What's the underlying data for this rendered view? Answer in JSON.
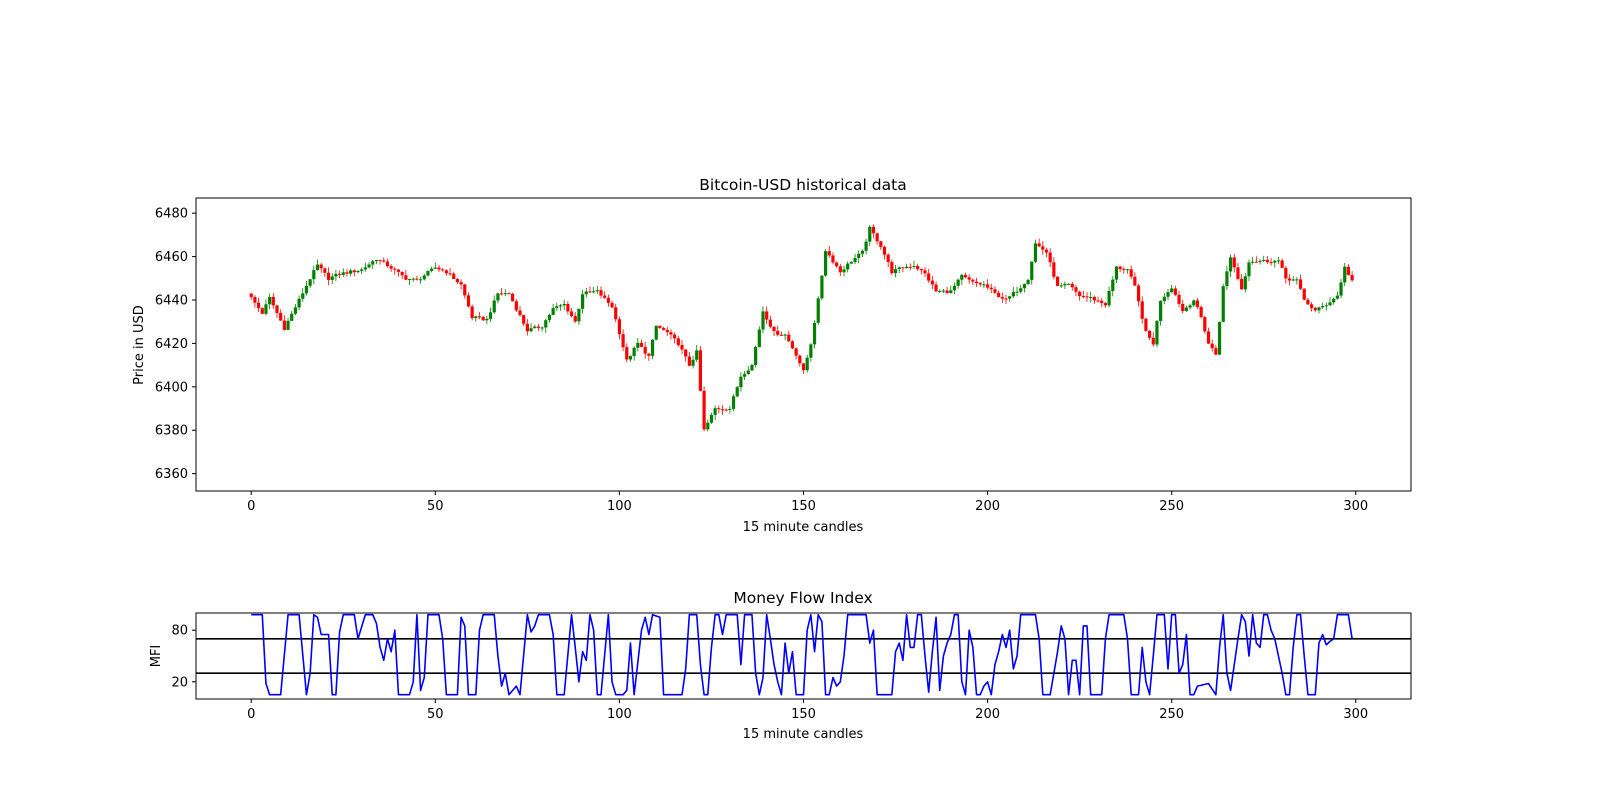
{
  "chart_data": [
    {
      "type": "candlestick",
      "title": "Bitcoin-USD historical data",
      "xlabel": "15 minute candles",
      "ylabel": "Price in USD",
      "xlim": [
        -15,
        315
      ],
      "ylim": [
        6352,
        6487
      ],
      "xticks": [
        0,
        50,
        100,
        150,
        200,
        250,
        300
      ],
      "yticks": [
        6360,
        6380,
        6400,
        6420,
        6440,
        6460,
        6480
      ],
      "up_color": "#008000",
      "down_color": "#ff0000",
      "grid": false,
      "close_anchors": [
        [
          0,
          6441
        ],
        [
          3,
          6434
        ],
        [
          5,
          6441
        ],
        [
          9,
          6427
        ],
        [
          13,
          6440
        ],
        [
          16,
          6450
        ],
        [
          18,
          6456
        ],
        [
          21,
          6450
        ],
        [
          24,
          6452
        ],
        [
          30,
          6454
        ],
        [
          34,
          6459
        ],
        [
          37,
          6456
        ],
        [
          42,
          6450
        ],
        [
          45,
          6449
        ],
        [
          50,
          6455
        ],
        [
          53,
          6453
        ],
        [
          57,
          6447
        ],
        [
          60,
          6432
        ],
        [
          64,
          6431
        ],
        [
          67,
          6443
        ],
        [
          70,
          6443
        ],
        [
          72,
          6436
        ],
        [
          75,
          6426
        ],
        [
          79,
          6428
        ],
        [
          82,
          6436
        ],
        [
          85,
          6438
        ],
        [
          88,
          6430
        ],
        [
          90,
          6443
        ],
        [
          94,
          6444
        ],
        [
          98,
          6437
        ],
        [
          100,
          6425
        ],
        [
          102,
          6412
        ],
        [
          105,
          6420
        ],
        [
          108,
          6414
        ],
        [
          110,
          6428
        ],
        [
          113,
          6425
        ],
        [
          116,
          6420
        ],
        [
          119,
          6410
        ],
        [
          121,
          6416
        ],
        [
          123,
          6380
        ],
        [
          126,
          6390
        ],
        [
          130,
          6390
        ],
        [
          133,
          6405
        ],
        [
          136,
          6410
        ],
        [
          139,
          6435
        ],
        [
          142,
          6425
        ],
        [
          145,
          6424
        ],
        [
          148,
          6415
        ],
        [
          150,
          6407
        ],
        [
          152,
          6420
        ],
        [
          154,
          6440
        ],
        [
          156,
          6463
        ],
        [
          160,
          6453
        ],
        [
          163,
          6458
        ],
        [
          166,
          6462
        ],
        [
          168,
          6473
        ],
        [
          171,
          6465
        ],
        [
          174,
          6453
        ],
        [
          177,
          6455
        ],
        [
          180,
          6456
        ],
        [
          183,
          6452
        ],
        [
          186,
          6444
        ],
        [
          190,
          6444
        ],
        [
          193,
          6451
        ],
        [
          196,
          6448
        ],
        [
          199,
          6447
        ],
        [
          202,
          6443
        ],
        [
          205,
          6440
        ],
        [
          209,
          6446
        ],
        [
          211,
          6450
        ],
        [
          213,
          6466
        ],
        [
          216,
          6462
        ],
        [
          219,
          6446
        ],
        [
          222,
          6447
        ],
        [
          225,
          6442
        ],
        [
          228,
          6441
        ],
        [
          232,
          6438
        ],
        [
          235,
          6455
        ],
        [
          238,
          6454
        ],
        [
          240,
          6446
        ],
        [
          243,
          6425
        ],
        [
          245,
          6420
        ],
        [
          247,
          6440
        ],
        [
          250,
          6446
        ],
        [
          253,
          6435
        ],
        [
          256,
          6440
        ],
        [
          258,
          6432
        ],
        [
          260,
          6420
        ],
        [
          262,
          6415
        ],
        [
          264,
          6446
        ],
        [
          266,
          6460
        ],
        [
          269,
          6445
        ],
        [
          271,
          6458
        ],
        [
          275,
          6458
        ],
        [
          279,
          6458
        ],
        [
          281,
          6450
        ],
        [
          284,
          6449
        ],
        [
          286,
          6440
        ],
        [
          289,
          6435
        ],
        [
          292,
          6438
        ],
        [
          295,
          6442
        ],
        [
          297,
          6455
        ],
        [
          299,
          6449
        ]
      ]
    },
    {
      "type": "line",
      "title": "Money Flow Index",
      "xlabel": "15 minute candles",
      "ylabel": "MFI",
      "xlim": [
        -15,
        315
      ],
      "ylim": [
        0,
        100
      ],
      "xticks": [
        0,
        50,
        100,
        150,
        200,
        250,
        300
      ],
      "yticks": [
        20,
        80
      ],
      "hlines": [
        70,
        30
      ],
      "line_color": "#0000ff",
      "hline_color": "#000000",
      "series_anchors": [
        [
          0,
          98
        ],
        [
          3,
          98
        ],
        [
          4,
          18
        ],
        [
          5,
          5
        ],
        [
          8,
          5
        ],
        [
          10,
          98
        ],
        [
          13,
          98
        ],
        [
          15,
          5
        ],
        [
          16,
          30
        ],
        [
          17,
          98
        ],
        [
          18,
          95
        ],
        [
          19,
          75
        ],
        [
          21,
          75
        ],
        [
          22,
          5
        ],
        [
          23,
          5
        ],
        [
          24,
          78
        ],
        [
          25,
          98
        ],
        [
          28,
          98
        ],
        [
          29,
          70
        ],
        [
          31,
          98
        ],
        [
          33,
          98
        ],
        [
          34,
          88
        ],
        [
          35,
          60
        ],
        [
          36,
          45
        ],
        [
          37,
          70
        ],
        [
          38,
          55
        ],
        [
          39,
          80
        ],
        [
          40,
          5
        ],
        [
          43,
          5
        ],
        [
          44,
          20
        ],
        [
          45,
          98
        ],
        [
          46,
          10
        ],
        [
          47,
          25
        ],
        [
          48,
          98
        ],
        [
          51,
          98
        ],
        [
          52,
          70
        ],
        [
          53,
          5
        ],
        [
          56,
          5
        ],
        [
          57,
          95
        ],
        [
          58,
          85
        ],
        [
          59,
          5
        ],
        [
          61,
          5
        ],
        [
          62,
          80
        ],
        [
          63,
          98
        ],
        [
          66,
          98
        ],
        [
          67,
          50
        ],
        [
          68,
          15
        ],
        [
          69,
          30
        ],
        [
          70,
          5
        ],
        [
          72,
          15
        ],
        [
          73,
          5
        ],
        [
          75,
          98
        ],
        [
          76,
          78
        ],
        [
          77,
          85
        ],
        [
          78,
          98
        ],
        [
          81,
          98
        ],
        [
          82,
          75
        ],
        [
          83,
          5
        ],
        [
          85,
          5
        ],
        [
          87,
          98
        ],
        [
          88,
          60
        ],
        [
          89,
          20
        ],
        [
          90,
          55
        ],
        [
          91,
          45
        ],
        [
          92,
          98
        ],
        [
          93,
          80
        ],
        [
          94,
          5
        ],
        [
          95,
          5
        ],
        [
          97,
          98
        ],
        [
          98,
          20
        ],
        [
          99,
          5
        ],
        [
          101,
          5
        ],
        [
          102,
          10
        ],
        [
          103,
          65
        ],
        [
          104,
          5
        ],
        [
          106,
          80
        ],
        [
          107,
          95
        ],
        [
          108,
          75
        ],
        [
          109,
          98
        ],
        [
          111,
          95
        ],
        [
          112,
          5
        ],
        [
          117,
          5
        ],
        [
          118,
          35
        ],
        [
          119,
          98
        ],
        [
          121,
          98
        ],
        [
          122,
          40
        ],
        [
          123,
          5
        ],
        [
          124,
          5
        ],
        [
          125,
          60
        ],
        [
          126,
          98
        ],
        [
          127,
          98
        ],
        [
          128,
          75
        ],
        [
          129,
          98
        ],
        [
          132,
          98
        ],
        [
          133,
          40
        ],
        [
          134,
          98
        ],
        [
          136,
          98
        ],
        [
          137,
          30
        ],
        [
          138,
          5
        ],
        [
          139,
          25
        ],
        [
          140,
          98
        ],
        [
          141,
          70
        ],
        [
          142,
          40
        ],
        [
          143,
          20
        ],
        [
          144,
          5
        ],
        [
          145,
          65
        ],
        [
          146,
          30
        ],
        [
          147,
          55
        ],
        [
          148,
          5
        ],
        [
          150,
          5
        ],
        [
          151,
          80
        ],
        [
          152,
          98
        ],
        [
          153,
          55
        ],
        [
          154,
          98
        ],
        [
          155,
          90
        ],
        [
          156,
          5
        ],
        [
          157,
          5
        ],
        [
          158,
          25
        ],
        [
          159,
          15
        ],
        [
          160,
          20
        ],
        [
          161,
          50
        ],
        [
          162,
          98
        ],
        [
          167,
          98
        ],
        [
          168,
          65
        ],
        [
          169,
          80
        ],
        [
          170,
          5
        ],
        [
          174,
          5
        ],
        [
          175,
          55
        ],
        [
          176,
          65
        ],
        [
          177,
          45
        ],
        [
          178,
          98
        ],
        [
          179,
          60
        ],
        [
          180,
          60
        ],
        [
          181,
          98
        ],
        [
          182,
          98
        ],
        [
          183,
          50
        ],
        [
          184,
          8
        ],
        [
          185,
          55
        ],
        [
          186,
          95
        ],
        [
          187,
          10
        ],
        [
          188,
          50
        ],
        [
          189,
          65
        ],
        [
          190,
          75
        ],
        [
          191,
          98
        ],
        [
          192,
          98
        ],
        [
          193,
          20
        ],
        [
          194,
          5
        ],
        [
          195,
          80
        ],
        [
          196,
          60
        ],
        [
          197,
          5
        ],
        [
          198,
          5
        ],
        [
          199,
          15
        ],
        [
          200,
          20
        ],
        [
          201,
          5
        ],
        [
          202,
          40
        ],
        [
          203,
          55
        ],
        [
          204,
          75
        ],
        [
          205,
          60
        ],
        [
          206,
          80
        ],
        [
          207,
          35
        ],
        [
          208,
          50
        ],
        [
          209,
          98
        ],
        [
          213,
          98
        ],
        [
          214,
          70
        ],
        [
          215,
          5
        ],
        [
          217,
          5
        ],
        [
          219,
          55
        ],
        [
          220,
          85
        ],
        [
          221,
          70
        ],
        [
          222,
          5
        ],
        [
          223,
          45
        ],
        [
          224,
          45
        ],
        [
          225,
          5
        ],
        [
          226,
          85
        ],
        [
          227,
          85
        ],
        [
          228,
          5
        ],
        [
          231,
          5
        ],
        [
          232,
          70
        ],
        [
          233,
          98
        ],
        [
          237,
          98
        ],
        [
          238,
          70
        ],
        [
          239,
          5
        ],
        [
          241,
          5
        ],
        [
          242,
          60
        ],
        [
          243,
          20
        ],
        [
          244,
          5
        ],
        [
          245,
          50
        ],
        [
          246,
          98
        ],
        [
          248,
          98
        ],
        [
          249,
          35
        ],
        [
          250,
          98
        ],
        [
          251,
          98
        ],
        [
          252,
          30
        ],
        [
          253,
          40
        ],
        [
          254,
          75
        ],
        [
          255,
          5
        ],
        [
          256,
          5
        ],
        [
          257,
          15
        ],
        [
          260,
          18
        ],
        [
          262,
          5
        ],
        [
          263,
          60
        ],
        [
          264,
          98
        ],
        [
          265,
          30
        ],
        [
          266,
          10
        ],
        [
          267,
          40
        ],
        [
          268,
          70
        ],
        [
          269,
          98
        ],
        [
          270,
          90
        ],
        [
          271,
          50
        ],
        [
          272,
          98
        ],
        [
          273,
          65
        ],
        [
          274,
          60
        ],
        [
          275,
          98
        ],
        [
          276,
          98
        ],
        [
          277,
          80
        ],
        [
          278,
          70
        ],
        [
          279,
          50
        ],
        [
          280,
          30
        ],
        [
          281,
          5
        ],
        [
          282,
          5
        ],
        [
          283,
          60
        ],
        [
          284,
          98
        ],
        [
          285,
          98
        ],
        [
          286,
          50
        ],
        [
          287,
          5
        ],
        [
          289,
          5
        ],
        [
          290,
          65
        ],
        [
          291,
          75
        ],
        [
          292,
          63
        ],
        [
          293,
          67
        ],
        [
          294,
          70
        ],
        [
          295,
          98
        ],
        [
          298,
          98
        ],
        [
          299,
          70
        ]
      ]
    }
  ]
}
